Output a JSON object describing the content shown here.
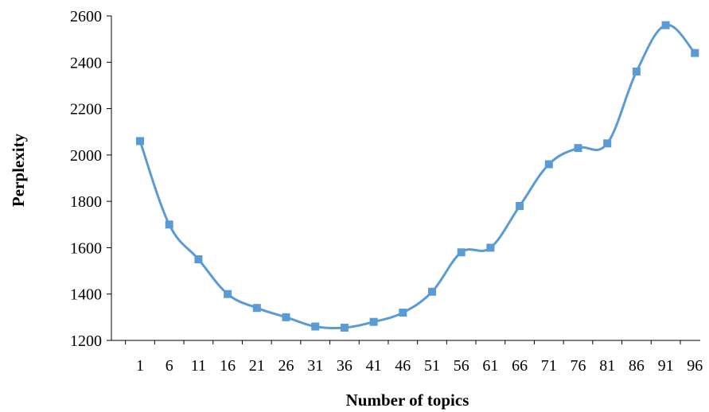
{
  "chart_data": {
    "type": "line",
    "title": "",
    "xlabel": "Number of topics",
    "ylabel": "Perplexity",
    "x": [
      1,
      6,
      11,
      16,
      21,
      26,
      31,
      36,
      41,
      46,
      51,
      56,
      61,
      66,
      71,
      76,
      81,
      86,
      91,
      96
    ],
    "x_tick_labels": [
      "1",
      "6",
      "11",
      "16",
      "21",
      "26",
      "31",
      "36",
      "41",
      "46",
      "51",
      "56",
      "61",
      "66",
      "71",
      "76",
      "81",
      "86",
      "91",
      "96"
    ],
    "y_tick_labels": [
      "1200",
      "1400",
      "1600",
      "1800",
      "2000",
      "2200",
      "2400",
      "2600"
    ],
    "y_ticks": [
      1200,
      1400,
      1600,
      1800,
      2000,
      2200,
      2400,
      2600
    ],
    "ylim": [
      1200,
      2600
    ],
    "grid": false,
    "legend": "none",
    "series": [
      {
        "color": "#5B9BD5",
        "marker": "square",
        "values": [
          2060,
          1700,
          1550,
          1400,
          1340,
          1300,
          1260,
          1255,
          1280,
          1320,
          1410,
          1580,
          1600,
          1780,
          1960,
          2030,
          2050,
          2360,
          2560,
          2440
        ]
      }
    ]
  }
}
